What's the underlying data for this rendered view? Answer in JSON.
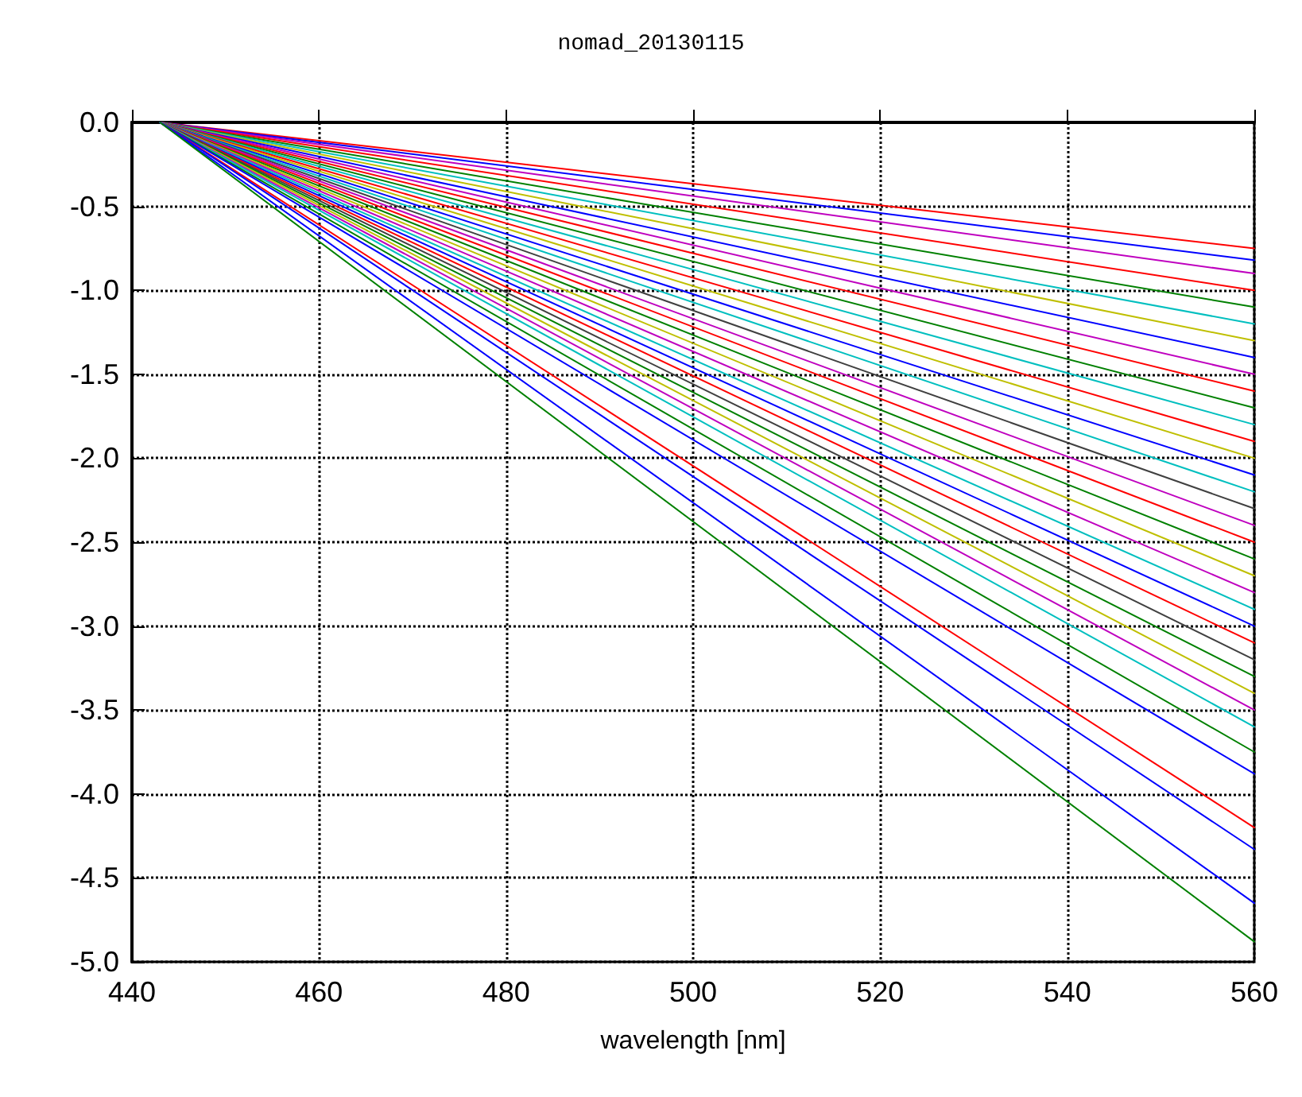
{
  "chart_data": {
    "type": "line",
    "title": "nomad_20130115",
    "xlabel": "wavelength [nm]",
    "x": [
      443,
      560
    ],
    "xlim": [
      440,
      560
    ],
    "xticks": [
      440,
      460,
      480,
      500,
      520,
      540,
      560
    ],
    "ylim": [
      -5,
      0
    ],
    "yticks": [
      {
        "value": -5,
        "label": "-5.0"
      },
      {
        "value": -4.5,
        "label": "-4.5"
      },
      {
        "value": -4,
        "label": "-4.0"
      },
      {
        "value": -3.5,
        "label": "-3.5"
      },
      {
        "value": -3,
        "label": "-3.0"
      },
      {
        "value": -2.5,
        "label": "-2.5"
      },
      {
        "value": -2,
        "label": "-2.0"
      },
      {
        "value": -1.5,
        "label": "-1.5"
      },
      {
        "value": -1,
        "label": "-1.0"
      },
      {
        "value": -0.5,
        "label": "-0.5"
      },
      {
        "value": 0,
        "label": "0.0"
      }
    ],
    "grid": true,
    "series": [
      {
        "color": "#ff0000",
        "values": [
          0,
          -0.75
        ]
      },
      {
        "color": "#0000ff",
        "values": [
          0,
          -0.82
        ]
      },
      {
        "color": "#bf00bf",
        "values": [
          0,
          -0.9
        ]
      },
      {
        "color": "#ff0000",
        "values": [
          0,
          -1.0
        ]
      },
      {
        "color": "#008000",
        "values": [
          0,
          -1.1
        ]
      },
      {
        "color": "#00bfbf",
        "values": [
          0,
          -1.2
        ]
      },
      {
        "color": "#bfbf00",
        "values": [
          0,
          -1.3
        ]
      },
      {
        "color": "#0000ff",
        "values": [
          0,
          -1.4
        ]
      },
      {
        "color": "#bf00bf",
        "values": [
          0,
          -1.5
        ]
      },
      {
        "color": "#ff0000",
        "values": [
          0,
          -1.6
        ]
      },
      {
        "color": "#008000",
        "values": [
          0,
          -1.7
        ]
      },
      {
        "color": "#00bfbf",
        "values": [
          0,
          -1.8
        ]
      },
      {
        "color": "#ff0000",
        "values": [
          0,
          -1.9
        ]
      },
      {
        "color": "#bfbf00",
        "values": [
          0,
          -2.0
        ]
      },
      {
        "color": "#0000ff",
        "values": [
          0,
          -2.1
        ]
      },
      {
        "color": "#00bfbf",
        "values": [
          0,
          -2.2
        ]
      },
      {
        "color": "#404040",
        "values": [
          0,
          -2.3
        ]
      },
      {
        "color": "#bf00bf",
        "values": [
          0,
          -2.4
        ]
      },
      {
        "color": "#ff0000",
        "values": [
          0,
          -2.5
        ]
      },
      {
        "color": "#008000",
        "values": [
          0,
          -2.6
        ]
      },
      {
        "color": "#bfbf00",
        "values": [
          0,
          -2.7
        ]
      },
      {
        "color": "#bf00bf",
        "values": [
          0,
          -2.8
        ]
      },
      {
        "color": "#00bfbf",
        "values": [
          0,
          -2.9
        ]
      },
      {
        "color": "#0000ff",
        "values": [
          0,
          -3.0
        ]
      },
      {
        "color": "#ff0000",
        "values": [
          0,
          -3.1
        ]
      },
      {
        "color": "#404040",
        "values": [
          0,
          -3.2
        ]
      },
      {
        "color": "#008000",
        "values": [
          0,
          -3.3
        ]
      },
      {
        "color": "#bfbf00",
        "values": [
          0,
          -3.4
        ]
      },
      {
        "color": "#bf00bf",
        "values": [
          0,
          -3.5
        ]
      },
      {
        "color": "#00bfbf",
        "values": [
          0,
          -3.6
        ]
      },
      {
        "color": "#008000",
        "values": [
          0,
          -3.75
        ]
      },
      {
        "color": "#0000ff",
        "values": [
          0,
          -3.88
        ]
      },
      {
        "color": "#ff0000",
        "values": [
          0,
          -4.2
        ]
      },
      {
        "color": "#0000ff",
        "values": [
          0,
          -4.33
        ]
      },
      {
        "color": "#0000ff",
        "values": [
          0,
          -4.65
        ]
      },
      {
        "color": "#008000",
        "values": [
          0,
          -4.88
        ]
      }
    ]
  }
}
